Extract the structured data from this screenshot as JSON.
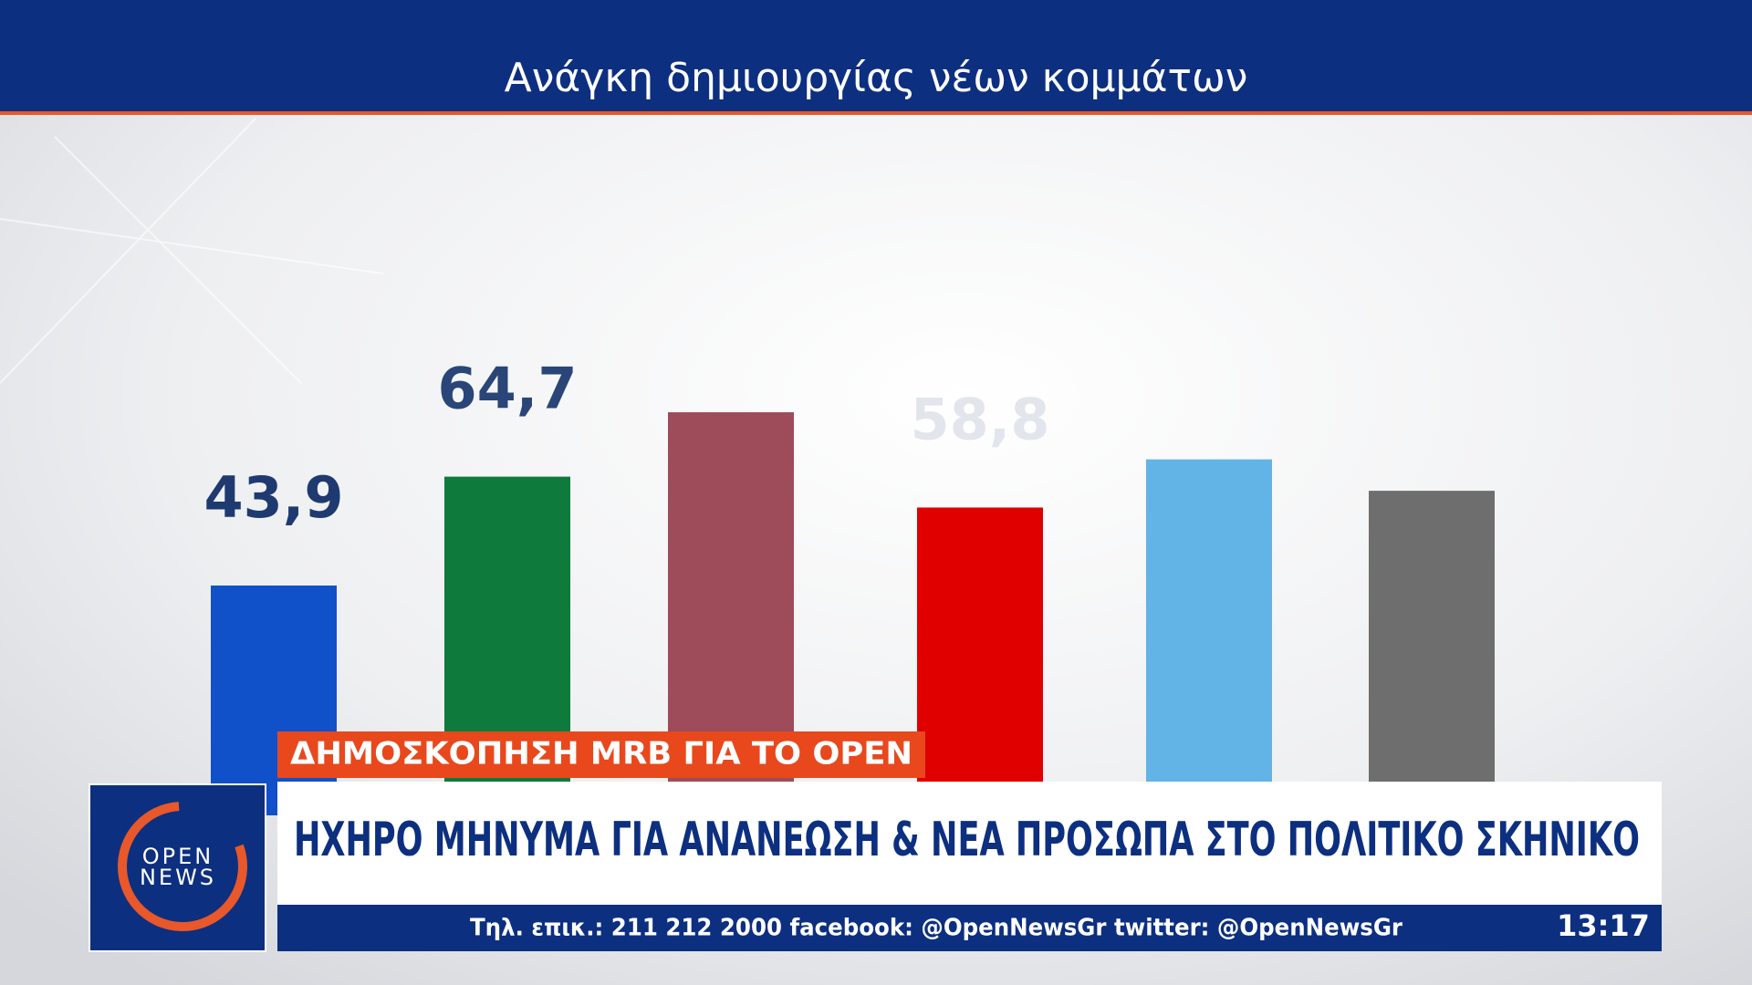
{
  "chart_data": {
    "type": "bar",
    "title": "Ανάγκη δημιουργίας νέων κομμάτων",
    "values": [
      43.9,
      64.7,
      77,
      58.8,
      68,
      62
    ],
    "value_labels": [
      "43,9",
      "64,7",
      null,
      "58,8",
      null,
      null
    ],
    "colors": [
      "#1050c8",
      "#0e7a3c",
      "#9e4b5a",
      "#e00000",
      "#62b3e6",
      "#6e6e6e"
    ],
    "ylim": [
      0,
      100
    ]
  },
  "overlay": {
    "tag": "ΔΗΜΟΣΚΟΠΗΣΗ MRB ΓΙΑ ΤΟ OPEN",
    "headline": "ΗΧΗΡΟ ΜΗΝΥΜΑ ΓΙΑ ΑΝΑΝΕΩΣΗ & ΝΕΑ ΠΡΟΣΩΠΑ ΣΤΟ ΠΟΛΙΤΙΚΟ ΣΚΗΝΙΚΟ",
    "ticker": "Τηλ. επικ.: 211 212 2000 facebook: @OpenNewsGr twitter: @OpenNewsGr",
    "clock": "13:17",
    "logo": {
      "line1": "OPEN",
      "line2": "NEWS"
    }
  }
}
